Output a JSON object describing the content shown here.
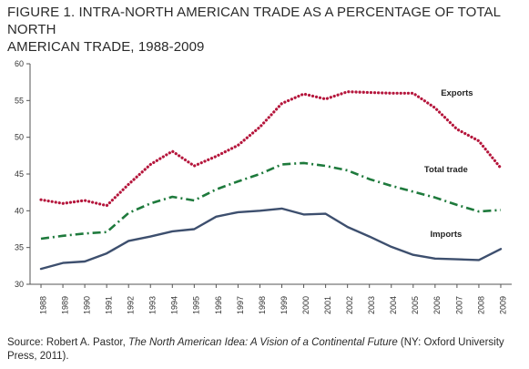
{
  "title": {
    "line1": "FIGURE 1. INTRA-NORTH AMERICAN TRADE AS A PERCENTAGE OF TOTAL NORTH",
    "line2": "AMERICAN TRADE, 1988-2009"
  },
  "source": {
    "prefix": "Source: Robert A. Pastor, ",
    "book_title": "The North American Idea: A Vision of a Continental Future",
    "suffix": " (NY: Oxford University Press, 2011)."
  },
  "chart_data": {
    "type": "line",
    "x": [
      "1988",
      "1989",
      "1990",
      "1991",
      "1992",
      "1993",
      "1994",
      "1995",
      "1996",
      "1997",
      "1998",
      "1999",
      "2000",
      "2001",
      "2002",
      "2003",
      "2004",
      "2005",
      "2006",
      "2007",
      "2008",
      "2009"
    ],
    "ylim": [
      30,
      60
    ],
    "yticks": [
      30,
      35,
      40,
      45,
      50,
      55,
      60
    ],
    "grid": false,
    "series": [
      {
        "name": "Exports",
        "color": "#b5163c",
        "style": "dotted",
        "values": [
          41.5,
          41.0,
          41.4,
          40.7,
          43.6,
          46.3,
          48.1,
          46.1,
          47.4,
          48.9,
          51.4,
          54.6,
          55.9,
          55.2,
          56.2,
          56.1,
          56.0,
          56.0,
          54.0,
          51.1,
          49.5,
          45.8
        ]
      },
      {
        "name": "Total trade",
        "color": "#1e7a3c",
        "style": "dashdot",
        "values": [
          36.2,
          36.6,
          36.9,
          37.1,
          39.7,
          41.0,
          41.9,
          41.4,
          42.9,
          44.0,
          45.0,
          46.3,
          46.5,
          46.1,
          45.5,
          44.3,
          43.4,
          42.6,
          41.8,
          40.8,
          39.9,
          40.1
        ]
      },
      {
        "name": "Imports",
        "color": "#3d4f6e",
        "style": "solid",
        "values": [
          32.1,
          32.9,
          33.1,
          34.2,
          35.9,
          36.5,
          37.2,
          37.5,
          39.2,
          39.8,
          40.0,
          40.3,
          39.5,
          39.6,
          37.8,
          36.5,
          35.1,
          34.0,
          33.5,
          33.4,
          33.3,
          34.8
        ]
      }
    ]
  }
}
